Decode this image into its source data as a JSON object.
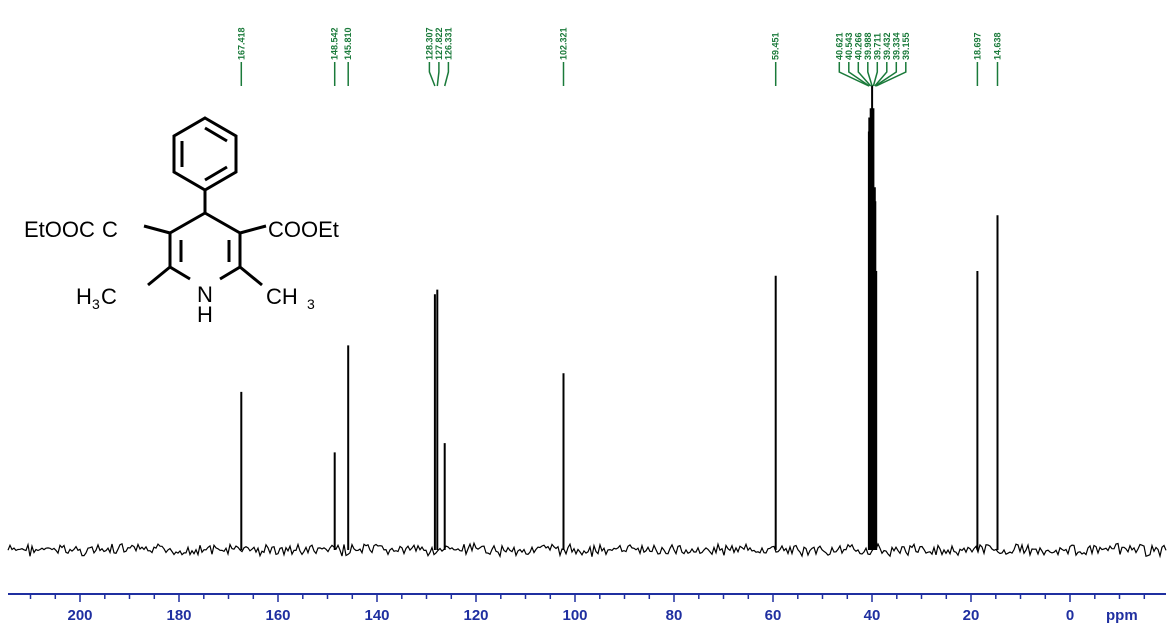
{
  "chart_data": {
    "type": "line",
    "title": "",
    "xlabel": "ppm",
    "ylabel": "",
    "x_reversed": true,
    "xlim": [
      220,
      -20
    ],
    "ticks": [
      200,
      180,
      160,
      140,
      120,
      100,
      80,
      60,
      40,
      20,
      0
    ],
    "tick_labels": [
      "200",
      "180",
      "160",
      "140",
      "120",
      "100",
      "80",
      "60",
      "40",
      "20",
      "0"
    ],
    "y_relative_range": [
      0,
      1
    ],
    "peaks": [
      {
        "shift": 167.418,
        "label": "167.418",
        "intensity": 0.34
      },
      {
        "shift": 148.542,
        "label": "148.542",
        "intensity": 0.21
      },
      {
        "shift": 145.81,
        "label": "145.810",
        "intensity": 0.44
      },
      {
        "shift": 128.307,
        "label": "128.307",
        "intensity": 0.55
      },
      {
        "shift": 127.822,
        "label": "127.822",
        "intensity": 0.56
      },
      {
        "shift": 126.331,
        "label": "126.331",
        "intensity": 0.23
      },
      {
        "shift": 102.321,
        "label": "102.321",
        "intensity": 0.38
      },
      {
        "shift": 59.451,
        "label": "59.451",
        "intensity": 0.59
      },
      {
        "shift": 40.621,
        "label": "40.621",
        "intensity": 0.9
      },
      {
        "shift": 40.543,
        "label": "40.543",
        "intensity": 0.93
      },
      {
        "shift": 40.266,
        "label": "40.266",
        "intensity": 0.95
      },
      {
        "shift": 39.988,
        "label": "39.988",
        "intensity": 1.0
      },
      {
        "shift": 39.711,
        "label": "39.711",
        "intensity": 0.95
      },
      {
        "shift": 39.432,
        "label": "39.432",
        "intensity": 0.78
      },
      {
        "shift": 39.334,
        "label": "39.334",
        "intensity": 0.75
      },
      {
        "shift": 39.155,
        "label": "39.155",
        "intensity": 0.6
      },
      {
        "shift": 18.697,
        "label": "18.697",
        "intensity": 0.6
      },
      {
        "shift": 14.638,
        "label": "14.638",
        "intensity": 0.72
      }
    ],
    "colors": {
      "spectrum": "#000000",
      "peak_labels": "#1a7a3a",
      "axis": "#1f2fa0"
    }
  },
  "molecule": {
    "left_substituent": "EtOOC",
    "right_substituent": "COOEt",
    "left_methyl_main": "H",
    "left_methyl_sub": "3",
    "left_methyl_end": "C",
    "right_methyl_main": "CH",
    "right_methyl_sub": "3",
    "ring_n": "N",
    "ring_nh": "H"
  }
}
